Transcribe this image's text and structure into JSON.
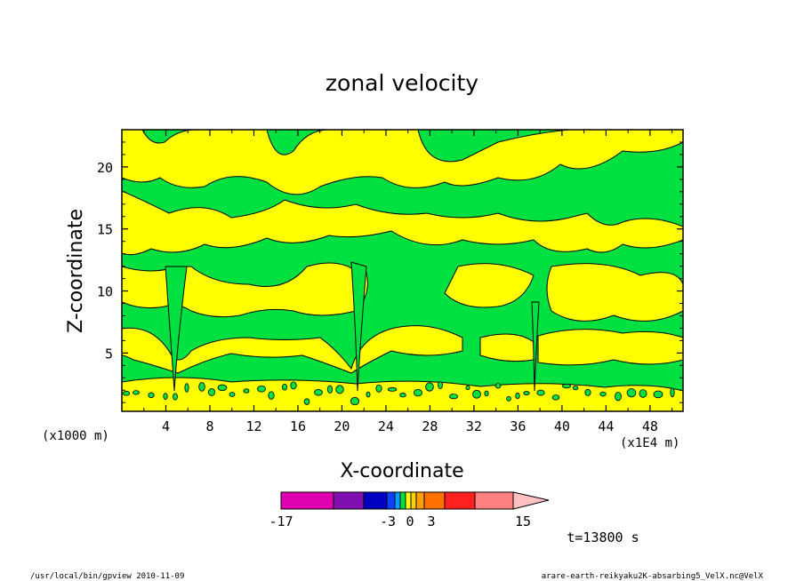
{
  "chart_data": {
    "type": "heatmap",
    "title": "zonal velocity",
    "xlabel": "X-coordinate",
    "ylabel": "Z-coordinate",
    "x_unit_left": "(x1000 m)",
    "x_unit_right": "(x1E4 m)",
    "xlim": [
      0,
      51
    ],
    "ylim": [
      0.3,
      23
    ],
    "x_ticks": [
      "4",
      "8",
      "12",
      "16",
      "20",
      "24",
      "28",
      "32",
      "36",
      "40",
      "44",
      "48"
    ],
    "x_tick_values": [
      4,
      8,
      12,
      16,
      20,
      24,
      28,
      32,
      36,
      40,
      44,
      48
    ],
    "y_ticks": [
      "5",
      "10",
      "15",
      "20"
    ],
    "y_tick_values": [
      5,
      10,
      15,
      20
    ],
    "grid": false,
    "field_levels": [
      {
        "color": "#00e040",
        "label": "-3 to 0"
      },
      {
        "color": "#ffff00",
        "label": "0 to 3"
      }
    ],
    "time_label": "t=13800 s"
  },
  "colorbar": {
    "colors": [
      "#e000b0",
      "#8010b0",
      "#0000c0",
      "#1040ff",
      "#00a0ff",
      "#00e040",
      "#ffff00",
      "#ffd000",
      "#ffa000",
      "#ff7000",
      "#ff2020",
      "#ff8080"
    ],
    "tick_labels": [
      "-17",
      "-3",
      "0",
      "3",
      "15"
    ]
  },
  "footer": {
    "left": "/usr/local/bin/gpview  2010-11-09",
    "right": "arare-earth-reikyaku2K-absarbing5_VelX.nc@VelX"
  }
}
